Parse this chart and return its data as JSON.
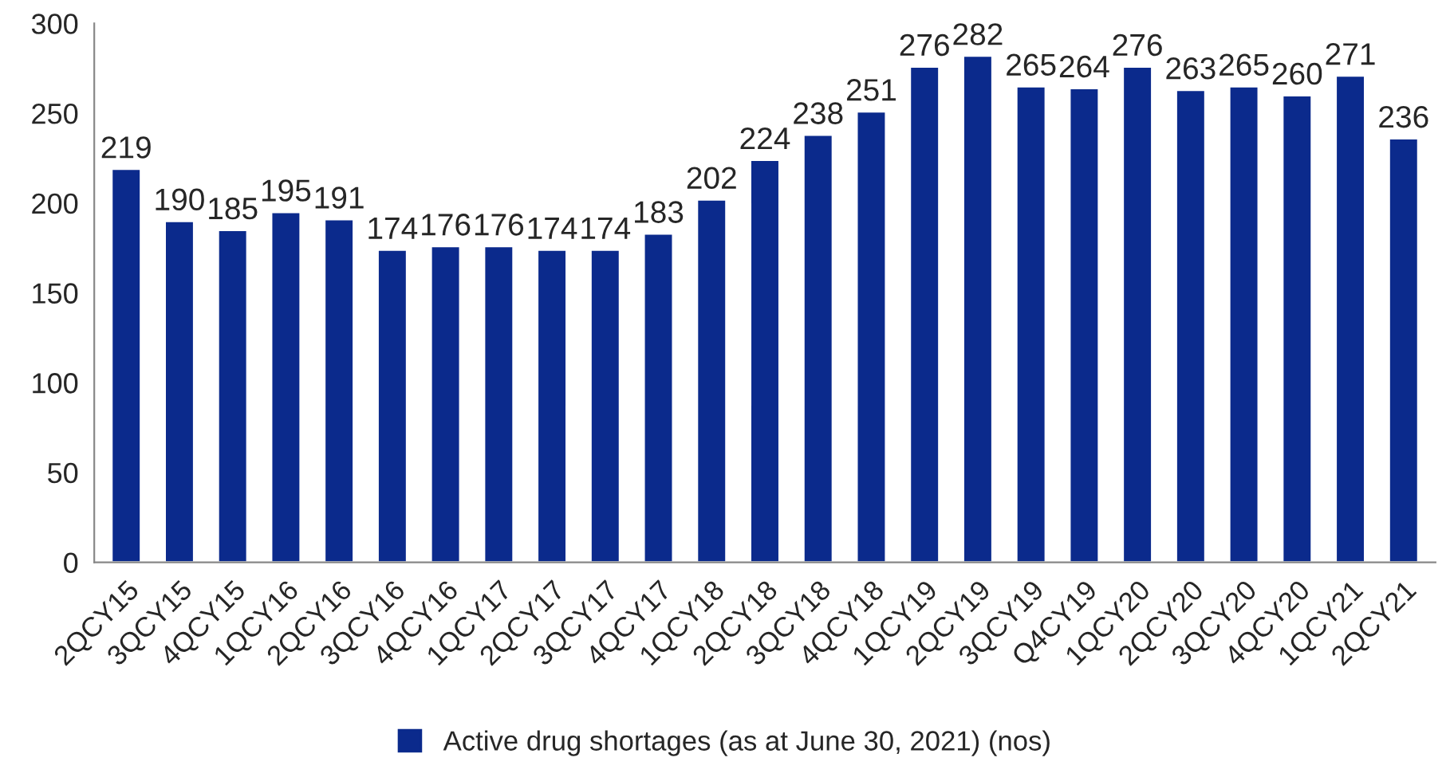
{
  "chart_data": {
    "type": "bar",
    "categories": [
      "2QCY15",
      "3QCY15",
      "4QCY15",
      "1QCY16",
      "2QCY16",
      "3QCY16",
      "4QCY16",
      "1QCY17",
      "2QCY17",
      "3QCY17",
      "4QCY17",
      "1QCY18",
      "2QCY18",
      "3QCY18",
      "4QCY18",
      "1QCY19",
      "2QCY19",
      "3QCY19",
      "Q4CY19",
      "1QCY20",
      "2QCY20",
      "3QCY20",
      "4QCY20",
      "1QCY21",
      "2QCY21"
    ],
    "series": [
      {
        "name": "Active drug shortages (as at June 30, 2021) (nos)",
        "color": "#0b2a8c",
        "values": [
          219,
          190,
          185,
          195,
          191,
          174,
          176,
          176,
          174,
          174,
          183,
          202,
          224,
          238,
          251,
          276,
          282,
          265,
          264,
          276,
          263,
          265,
          260,
          271,
          236
        ]
      }
    ],
    "ylim": [
      0,
      300
    ],
    "yticks": [
      0,
      50,
      100,
      150,
      200,
      250,
      300
    ],
    "data_labels": true,
    "grid": false,
    "legend": "bottom"
  }
}
